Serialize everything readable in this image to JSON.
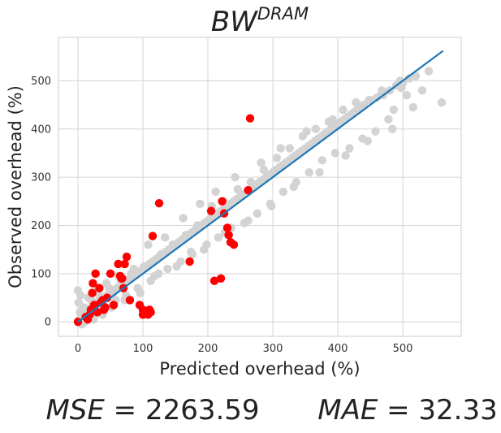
{
  "chart_data": {
    "type": "scatter",
    "title": {
      "base": "BW",
      "superscript": "DRAM"
    },
    "xlabel": "Predicted overhead (%)",
    "ylabel": "Observed overhead (%)",
    "xlim": [
      -30,
      590
    ],
    "ylim": [
      -30,
      590
    ],
    "xticks": [
      0,
      100,
      200,
      300,
      400,
      500
    ],
    "yticks": [
      0,
      100,
      200,
      300,
      400,
      500
    ],
    "grid": true,
    "legend": "none",
    "colors": {
      "background_points": "#d3d3d3",
      "outlier_points": "#ff0000",
      "fit_line": "#1f77b4",
      "grid": "#d5d5d5"
    },
    "series": [
      {
        "role": "background",
        "x": [
          2,
          5,
          8,
          10,
          12,
          15,
          18,
          20,
          22,
          25,
          28,
          30,
          35,
          40,
          45,
          50,
          55,
          60,
          65,
          70,
          75,
          80,
          85,
          90,
          95,
          100,
          105,
          110,
          115,
          120,
          125,
          130,
          135,
          140,
          145,
          150,
          155,
          160,
          165,
          170,
          175,
          180,
          185,
          190,
          195,
          200,
          205,
          210,
          215,
          220,
          225,
          230,
          235,
          240,
          245,
          250,
          255,
          260,
          265,
          270,
          275,
          280,
          285,
          290,
          295,
          300,
          305,
          310,
          315,
          320,
          325,
          330,
          335,
          340,
          345,
          350,
          355,
          360,
          365,
          370,
          375,
          380,
          385,
          390,
          395,
          400,
          405,
          410,
          415,
          420,
          425,
          430,
          435,
          440,
          450,
          460,
          470,
          480,
          490,
          500,
          510,
          520,
          540,
          560,
          3,
          6,
          9,
          14,
          20,
          27,
          33,
          42,
          48,
          58,
          66,
          74,
          82,
          92,
          102,
          112,
          118,
          128,
          138,
          146,
          158,
          166,
          176,
          184,
          194,
          206,
          216,
          224,
          236,
          246,
          256,
          266,
          276,
          286,
          296,
          306,
          316,
          326,
          336,
          346,
          356,
          366,
          376,
          386,
          396,
          408,
          418,
          428,
          438,
          448,
          458,
          468,
          478,
          486,
          496,
          506,
          516,
          530,
          0,
          1,
          4,
          7,
          11,
          16,
          24,
          31,
          38,
          44,
          52,
          62,
          72,
          86,
          96,
          108,
          124,
          134,
          152,
          162,
          174,
          188,
          198,
          212,
          226,
          242,
          262,
          282,
          298,
          312,
          332,
          352,
          372,
          392,
          412,
          432,
          446,
          466,
          484,
          498
        ],
        "y": [
          5,
          10,
          12,
          15,
          20,
          18,
          25,
          30,
          28,
          35,
          38,
          40,
          45,
          48,
          55,
          60,
          62,
          70,
          75,
          80,
          85,
          90,
          95,
          100,
          105,
          110,
          115,
          120,
          125,
          130,
          135,
          140,
          145,
          150,
          155,
          160,
          165,
          170,
          175,
          180,
          185,
          190,
          195,
          200,
          205,
          210,
          215,
          220,
          225,
          230,
          235,
          240,
          245,
          250,
          255,
          260,
          265,
          270,
          275,
          280,
          285,
          290,
          295,
          300,
          305,
          310,
          315,
          320,
          325,
          330,
          335,
          340,
          345,
          350,
          355,
          360,
          365,
          370,
          375,
          380,
          385,
          390,
          395,
          400,
          405,
          410,
          415,
          420,
          425,
          430,
          435,
          440,
          445,
          450,
          460,
          465,
          470,
          480,
          490,
          495,
          505,
          510,
          520,
          455,
          20,
          -5,
          30,
          8,
          45,
          15,
          55,
          30,
          70,
          45,
          85,
          55,
          100,
          70,
          115,
          85,
          95,
          140,
          110,
          160,
          125,
          180,
          140,
          200,
          150,
          240,
          175,
          250,
          195,
          275,
          205,
          290,
          225,
          315,
          245,
          340,
          270,
          360,
          290,
          385,
          310,
          400,
          335,
          415,
          350,
          440,
          360,
          455,
          380,
          460,
          395,
          480,
          420,
          440,
          500,
          470,
          445,
          480,
          65,
          40,
          55,
          25,
          0,
          50,
          5,
          70,
          15,
          80,
          30,
          95,
          45,
          110,
          60,
          160,
          100,
          175,
          115,
          215,
          145,
          245,
          160,
          270,
          185,
          300,
          210,
          330,
          240,
          360,
          280,
          395,
          310,
          420,
          345,
          440,
          375,
          470,
          400,
          485
        ],
        "name": ""
      },
      {
        "role": "outliers",
        "x": [
          0,
          12,
          15,
          18,
          20,
          22,
          23,
          25,
          27,
          30,
          33,
          35,
          38,
          40,
          42,
          45,
          50,
          55,
          62,
          65,
          67,
          68,
          70,
          72,
          75,
          80,
          95,
          100,
          100,
          105,
          108,
          110,
          112,
          115,
          125,
          172,
          205,
          210,
          220,
          222,
          225,
          230,
          232,
          235,
          240,
          262,
          265
        ],
        "y": [
          0,
          10,
          5,
          15,
          25,
          60,
          80,
          35,
          100,
          20,
          70,
          40,
          45,
          25,
          30,
          50,
          100,
          35,
          120,
          95,
          90,
          90,
          70,
          120,
          135,
          45,
          35,
          15,
          25,
          20,
          15,
          25,
          20,
          178,
          246,
          125,
          230,
          85,
          90,
          250,
          225,
          195,
          180,
          165,
          160,
          273,
          422
        ],
        "name": ""
      }
    ],
    "fit_line": {
      "x": [
        0,
        562
      ],
      "y": [
        0,
        562
      ]
    },
    "metrics": [
      {
        "symbol": "MSE",
        "value": "2263.59"
      },
      {
        "symbol": "MAE",
        "value": "32.33"
      }
    ]
  }
}
